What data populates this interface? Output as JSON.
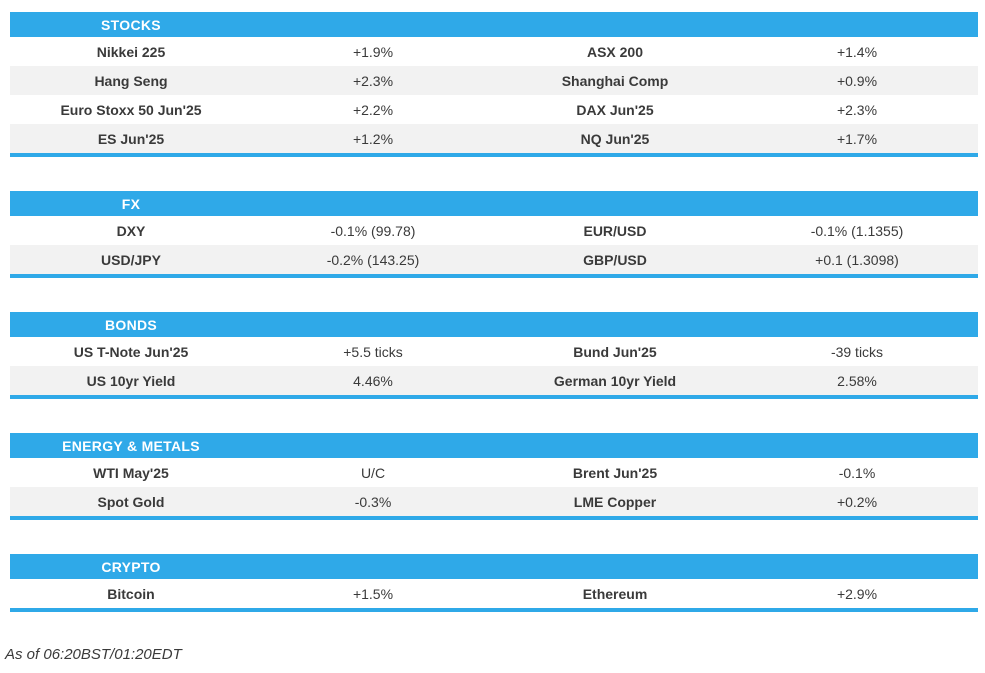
{
  "theme": {
    "accent_blue": "#2FA9E8",
    "row_alt_gray": "#F2F2F2",
    "text_color": "#3A3A3A",
    "header_text_color": "#FFFFFF"
  },
  "sections": [
    {
      "title": "STOCKS",
      "rows": [
        [
          "Nikkei 225",
          "+1.9%",
          "ASX 200",
          "+1.4%"
        ],
        [
          "Hang Seng",
          "+2.3%",
          "Shanghai Comp",
          "+0.9%"
        ],
        [
          "Euro Stoxx 50 Jun'25",
          "+2.2%",
          "DAX Jun'25",
          "+2.3%"
        ],
        [
          "ES Jun'25",
          "+1.2%",
          "NQ Jun'25",
          "+1.7%"
        ]
      ]
    },
    {
      "title": "FX",
      "rows": [
        [
          "DXY",
          "-0.1% (99.78)",
          "EUR/USD",
          "-0.1% (1.1355)"
        ],
        [
          "USD/JPY",
          "-0.2% (143.25)",
          "GBP/USD",
          "+0.1 (1.3098)"
        ]
      ]
    },
    {
      "title": "BONDS",
      "rows": [
        [
          "US T-Note Jun'25",
          "+5.5 ticks",
          "Bund Jun'25",
          "-39 ticks"
        ],
        [
          "US 10yr Yield",
          "4.46%",
          "German 10yr Yield",
          "2.58%"
        ]
      ]
    },
    {
      "title": "ENERGY & METALS",
      "rows": [
        [
          "WTI May'25",
          "U/C",
          "Brent Jun'25",
          "-0.1%"
        ],
        [
          "Spot Gold",
          "-0.3%",
          "LME Copper",
          "+0.2%"
        ]
      ]
    },
    {
      "title": "CRYPTO",
      "rows": [
        [
          "Bitcoin",
          "+1.5%",
          "Ethereum",
          "+2.9%"
        ]
      ]
    }
  ],
  "footer": {
    "as_of": "As of 06:20BST/01:20EDT"
  }
}
